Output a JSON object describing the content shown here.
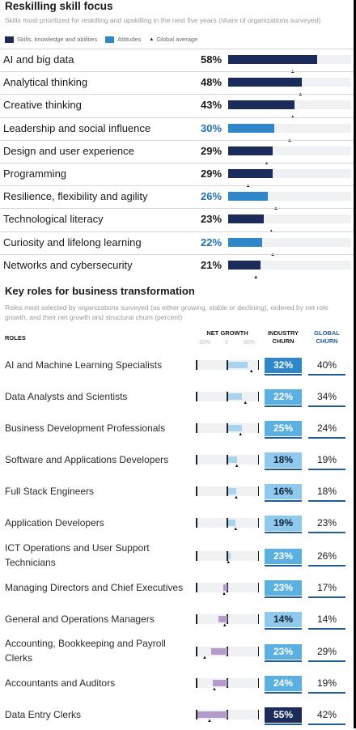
{
  "colors": {
    "skills": "#1c2b5a",
    "attitudes": "#2f86c8",
    "growth": "#a9d4ee",
    "decline": "#b49bcc",
    "churn_dark": "#1c2b5a",
    "churn_mid": "#2f86c8",
    "churn_light": "#5ab0e0",
    "churn_pale": "#8fc9ee",
    "global_accent": "#1f5c99"
  },
  "reskilling": {
    "title": "Reskilling skill focus",
    "subtitle": "Skills most prioritized for reskilling and upskilling in the next five years (share of organizations surveyed)",
    "legend": {
      "skills": "Skills, knowledge and abilities",
      "attitudes": "Attitudes",
      "global": "Global average"
    }
  },
  "roles_section": {
    "title": "Key roles for business transformation",
    "subtitle": "Roles most selected by organizations surveyed (as either growing, stable or declining), ordered by net role growth, and their net growth and structural churn (percent)",
    "col_roles": "ROLES",
    "col_net_growth": "NET GROWTH",
    "col_industry": "INDUSTRY CHURN",
    "col_global": "GLOBAL CHURN",
    "ticks": [
      "-50%",
      "0",
      "50%"
    ]
  },
  "chart_data": [
    {
      "type": "bar",
      "title": "Reskilling skill focus",
      "unit": "%",
      "xlim": [
        0,
        100
      ],
      "categories": [
        "AI and big data",
        "Analytical thinking",
        "Creative thinking",
        "Leadership and social influence",
        "Design and user experience",
        "Programming",
        "Resilience, flexibility and agility",
        "Technological literacy",
        "Curiosity and lifelong learning",
        "Networks and cybersecurity"
      ],
      "kind": [
        "skill",
        "skill",
        "skill",
        "attitude",
        "skill",
        "skill",
        "attitude",
        "skill",
        "attitude",
        "skill"
      ],
      "labels": [
        "58%",
        "48%",
        "43%",
        "30%",
        "29%",
        "29%",
        "26%",
        "23%",
        "22%",
        "21%"
      ],
      "values": [
        58,
        48,
        43,
        30,
        29,
        29,
        26,
        23,
        22,
        21
      ],
      "global_average": [
        42,
        47,
        42,
        40,
        25,
        13,
        31,
        28,
        29,
        18
      ]
    },
    {
      "type": "table",
      "title": "Key roles for business transformation",
      "columns": [
        "Roles",
        "Net growth",
        "Industry churn",
        "Global churn"
      ],
      "categories": [
        "AI and Machine Learning Specialists",
        "Data Analysts and Scientists",
        "Business Development Professionals",
        "Software and Applications Developers",
        "Full Stack Engineers",
        "Application Developers",
        "ICT Operations and User Support Technicians",
        "Managing Directors and Chief Executives",
        "General and Operations Managers",
        "Accounting, Bookkeeping and Payroll Clerks",
        "Accountants and Auditors",
        "Data Entry Clerks"
      ],
      "net_growth": [
        32,
        22,
        22,
        14,
        13,
        12,
        3,
        -7,
        -15,
        -26,
        -24,
        -49
      ],
      "net_growth_global": [
        40,
        30,
        22,
        16,
        15,
        14,
        2,
        -5,
        -4,
        -37,
        -21,
        -29
      ],
      "industry_churn": [
        "32%",
        "22%",
        "25%",
        "18%",
        "16%",
        "19%",
        "23%",
        "23%",
        "14%",
        "23%",
        "24%",
        "55%"
      ],
      "global_churn": [
        "40%",
        "34%",
        "24%",
        "19%",
        "18%",
        "23%",
        "26%",
        "17%",
        "14%",
        "29%",
        "19%",
        "42%"
      ],
      "net_growth_xlim": [
        -50,
        50
      ]
    }
  ]
}
